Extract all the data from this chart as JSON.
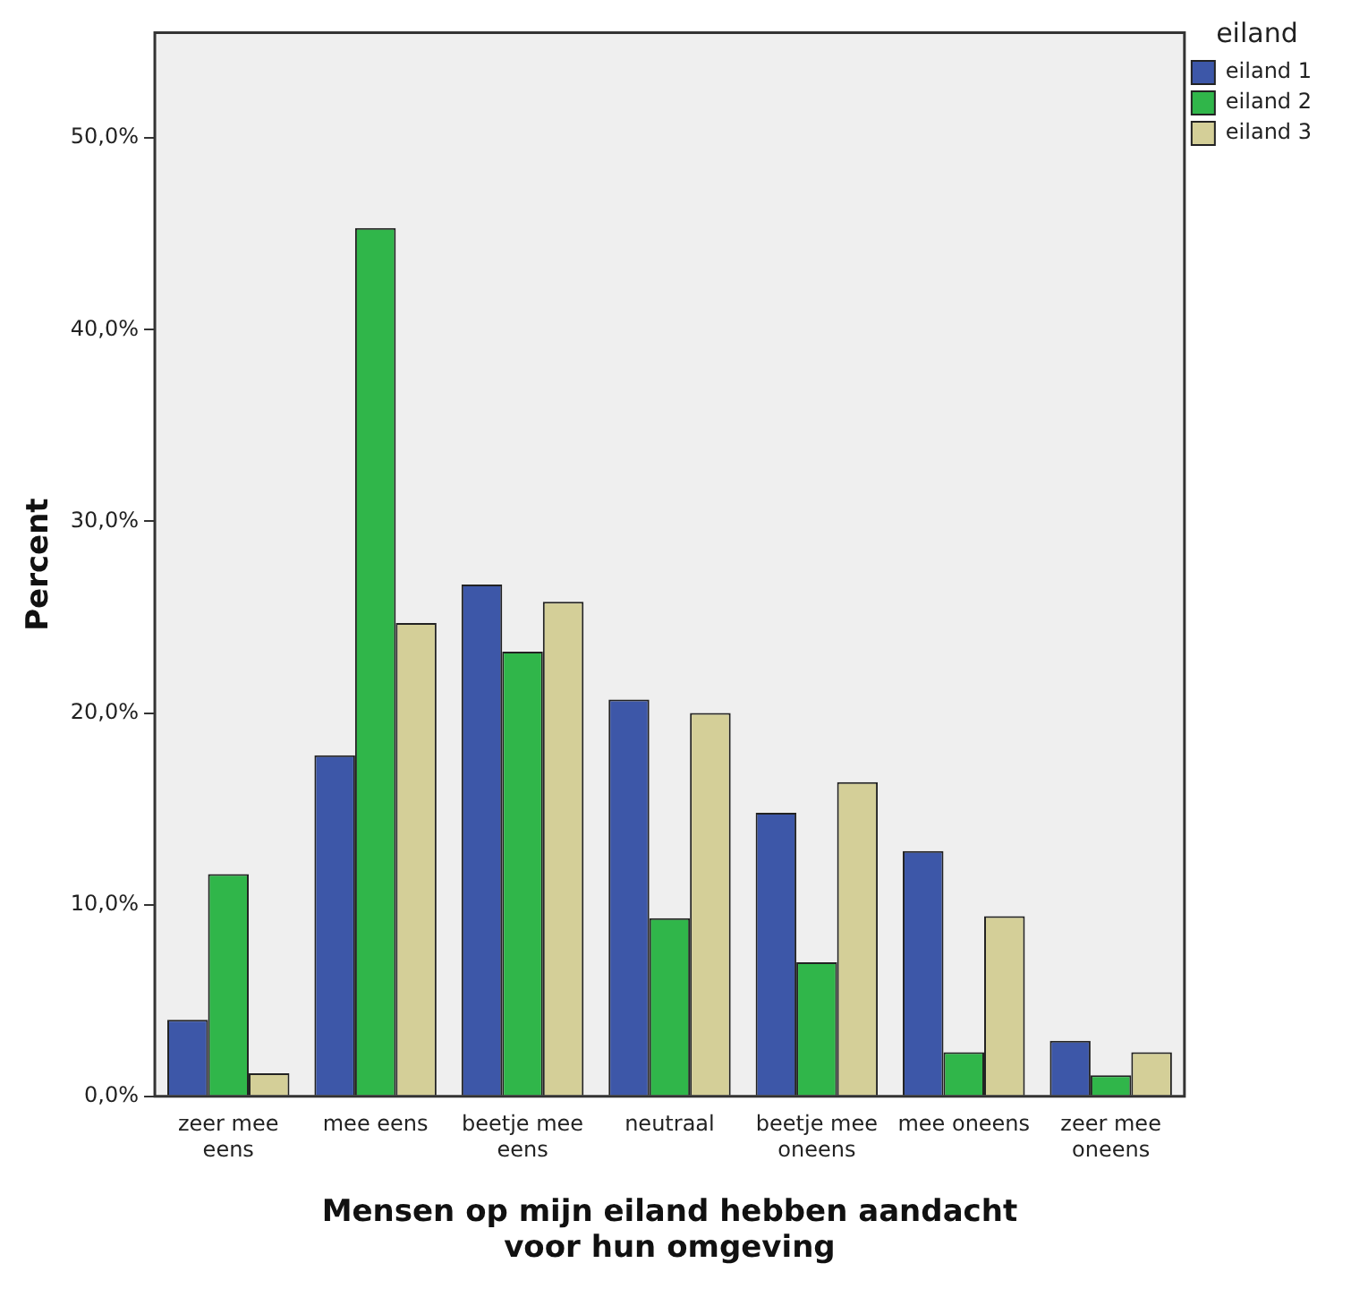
{
  "chart_data": {
    "type": "bar",
    "xlabel": "Mensen op mijn eiland hebben aandacht voor hun omgeving",
    "ylabel": "Percent",
    "legend_title": "eiland",
    "legend": "right",
    "categories": [
      "zeer mee eens",
      "mee eens",
      "beetje mee eens",
      "neutraal",
      "beetje mee oneens",
      "mee oneens",
      "zeer mee oneens"
    ],
    "series": [
      {
        "name": "eiland 1",
        "color": "#3d57a8",
        "values": [
          4.0,
          17.8,
          26.7,
          20.7,
          14.8,
          12.8,
          2.9
        ]
      },
      {
        "name": "eiland 2",
        "color": "#30b64a",
        "values": [
          11.6,
          45.3,
          23.2,
          9.3,
          7.0,
          2.3,
          1.1
        ]
      },
      {
        "name": "eiland 3",
        "color": "#d4cf98",
        "values": [
          1.2,
          24.7,
          25.8,
          20.0,
          16.4,
          9.4,
          2.3
        ]
      }
    ],
    "ylim": [
      0,
      55.5
    ],
    "yticks": [
      {
        "value": 0,
        "label": "0,0%"
      },
      {
        "value": 10,
        "label": "10,0%"
      },
      {
        "value": 20,
        "label": "20,0%"
      },
      {
        "value": 30,
        "label": "30,0%"
      },
      {
        "value": 40,
        "label": "40,0%"
      },
      {
        "value": 50,
        "label": "50,0%"
      }
    ],
    "grid": false
  }
}
